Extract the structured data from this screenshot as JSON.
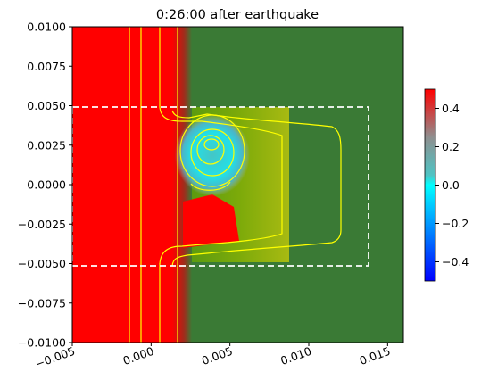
{
  "chart_data": {
    "type": "heatmap",
    "title": "0:26:00 after earthquake",
    "xlim": [
      -0.005,
      0.016
    ],
    "ylim": [
      -0.01,
      0.01
    ],
    "x_ticks": [
      "−0.005",
      "0.000",
      "0.005",
      "0.010",
      "0.015"
    ],
    "x_tick_values": [
      -0.005,
      0.0,
      0.005,
      0.01,
      0.015
    ],
    "y_ticks": [
      "0.0100",
      "0.0075",
      "0.0050",
      "0.0025",
      "0.0000",
      "−0.0025",
      "−0.0050",
      "−0.0075",
      "−0.0100"
    ],
    "y_tick_values": [
      0.01,
      0.0075,
      0.005,
      0.0025,
      0.0,
      -0.0025,
      -0.005,
      -0.0075,
      -0.01
    ],
    "colorbar": {
      "range": [
        -0.5,
        0.5
      ],
      "ticks": [
        "0.4",
        "0.2",
        "0.0",
        "−0.2",
        "−0.4"
      ],
      "tick_values": [
        0.4,
        0.2,
        0.0,
        -0.2,
        -0.4
      ],
      "colors": [
        "#0000ff",
        "#00ffff",
        "#808080",
        "#ff0000"
      ]
    },
    "regions": {
      "land_color": "#ff0000",
      "sea_color": "#3a7a35",
      "shelf_color": "#8ab008",
      "wave_color": "#3cc8c8"
    },
    "dashed_box": {
      "x": [
        -0.005,
        0.0138
      ],
      "y": [
        -0.0051,
        0.005
      ]
    },
    "contour_color": "#ffff00"
  }
}
